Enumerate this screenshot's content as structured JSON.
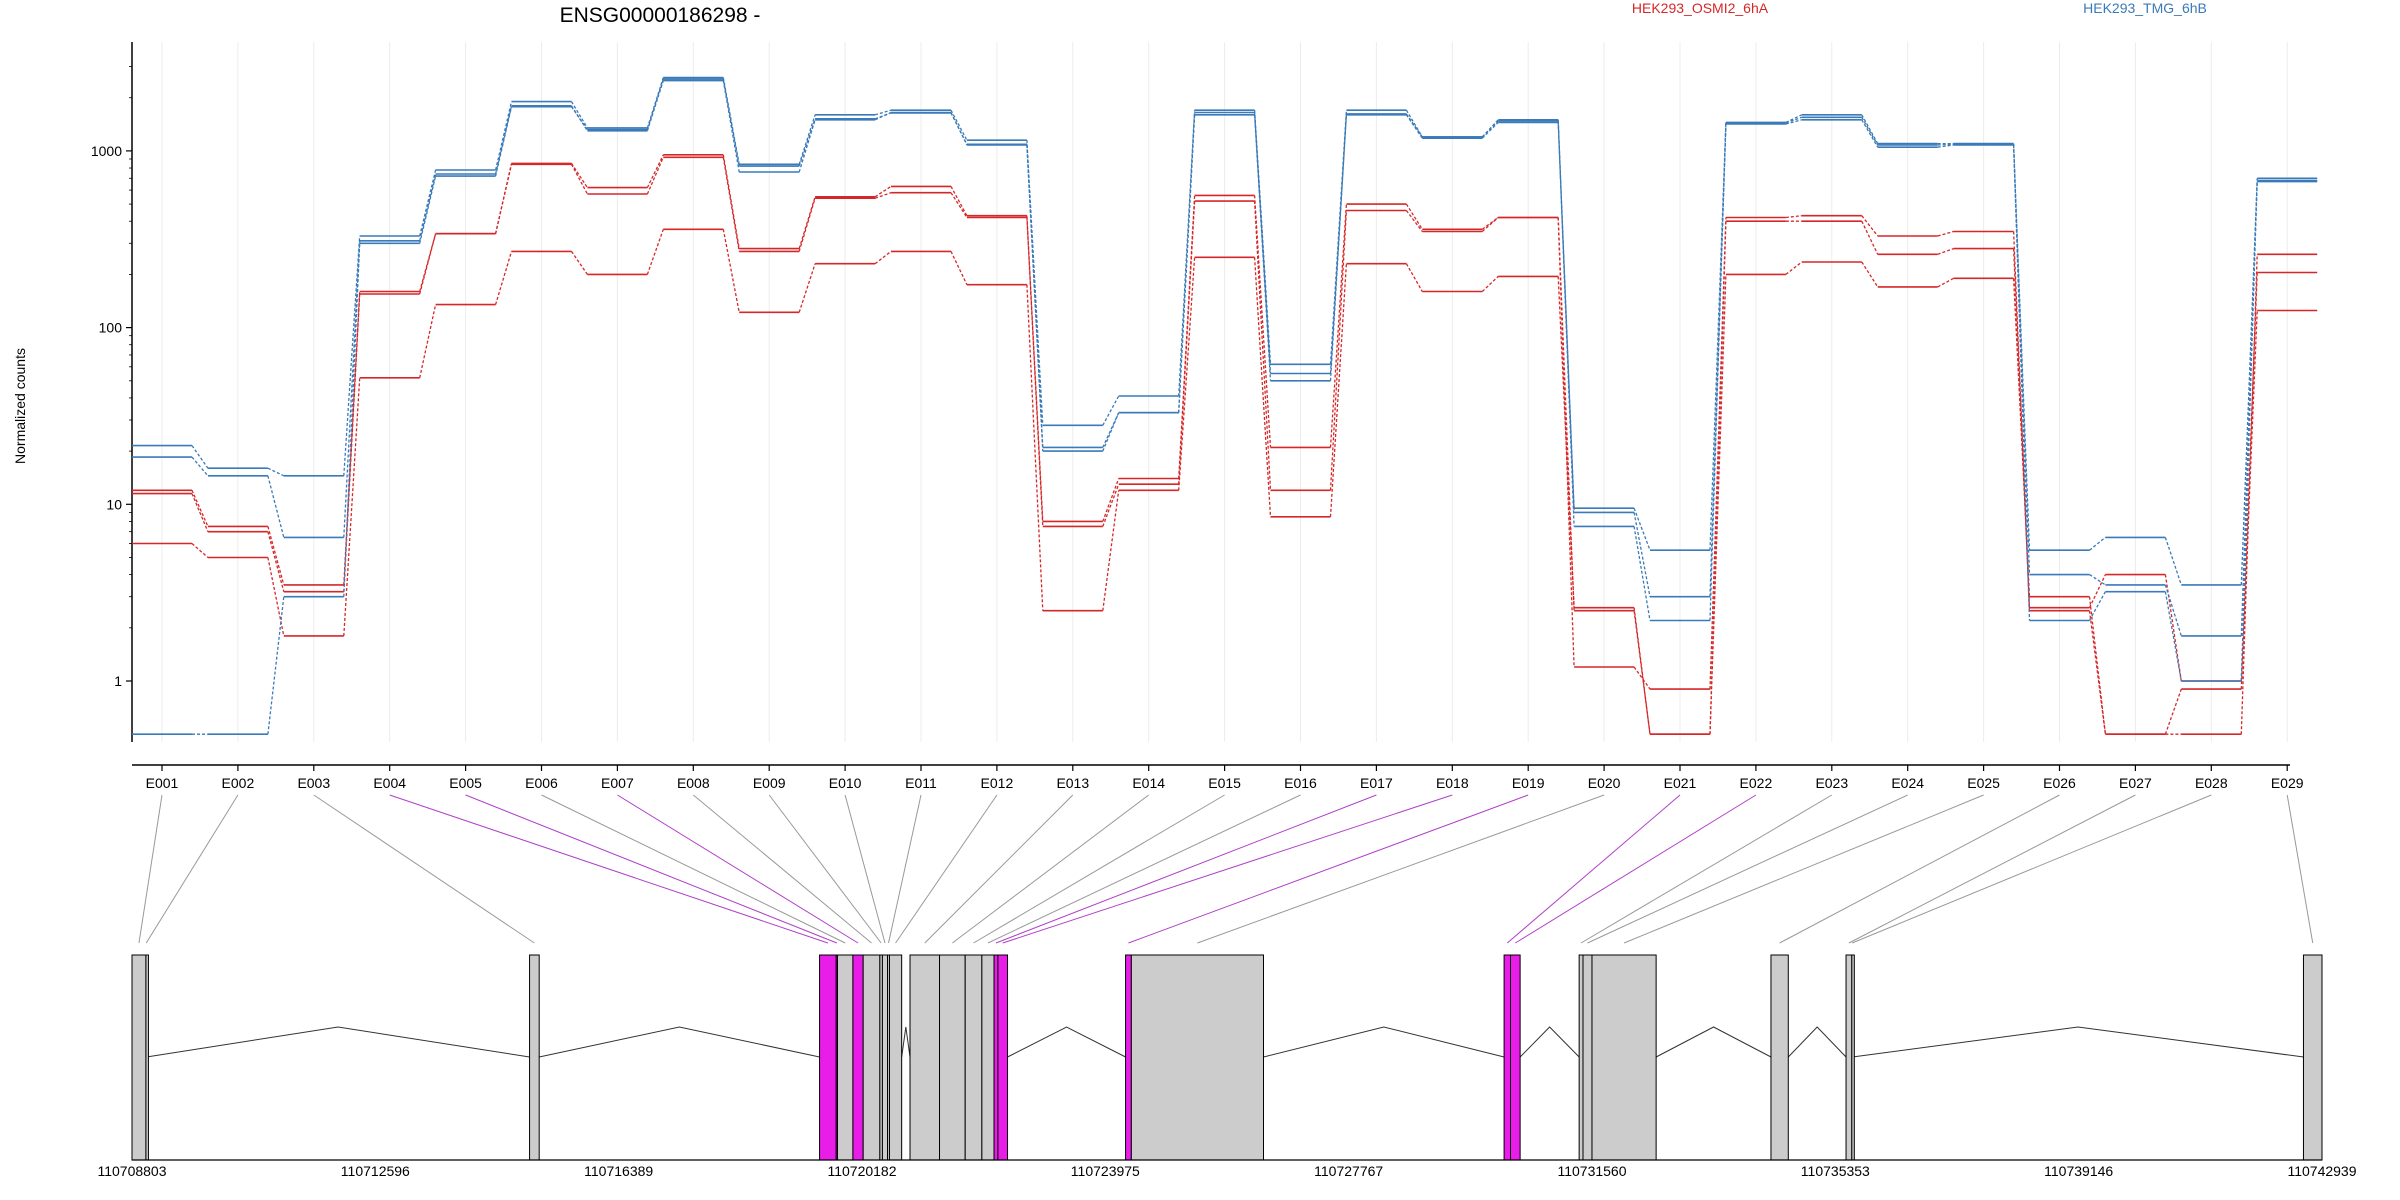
{
  "chart_data": {
    "type": "line",
    "title": "ENSG00000186298 -",
    "ylabel": "Normalized counts",
    "yscale": "log",
    "yticks": [
      1,
      10,
      100,
      1000
    ],
    "ylim": [
      0.5,
      3500
    ],
    "grid": "vertical",
    "legend_position": "top",
    "categories": [
      "E001",
      "E002",
      "E003",
      "E004",
      "E005",
      "E006",
      "E007",
      "E008",
      "E009",
      "E010",
      "E011",
      "E012",
      "E013",
      "E014",
      "E015",
      "E016",
      "E017",
      "E018",
      "E019",
      "E020",
      "E021",
      "E022",
      "E023",
      "E024",
      "E025",
      "E026",
      "E027",
      "E028",
      "E029"
    ],
    "series": [
      {
        "name": "HEK293_OSMI2_6hA",
        "color": "#d62728",
        "replicates": [
          [
            12,
            7.5,
            3.5,
            160,
            340,
            850,
            620,
            950,
            280,
            550,
            630,
            430,
            8,
            14,
            560,
            21,
            500,
            360,
            420,
            1.2,
            0.9,
            420,
            430,
            330,
            350,
            2.5,
            0.5,
            0.5,
            260
          ],
          [
            11.5,
            7,
            3.2,
            155,
            340,
            840,
            570,
            920,
            270,
            540,
            580,
            420,
            7.5,
            13,
            520,
            12,
            460,
            350,
            420,
            2.5,
            0.5,
            400,
            400,
            260,
            280,
            2.6,
            4,
            1,
            205
          ],
          [
            6,
            5,
            1.8,
            52,
            135,
            270,
            200,
            360,
            122,
            230,
            270,
            175,
            2.5,
            12,
            250,
            8.5,
            230,
            160,
            195,
            2.6,
            0.5,
            200,
            235,
            170,
            190,
            3,
            0.5,
            0.9,
            125
          ]
        ]
      },
      {
        "name": "HEK293_TMG_6hB",
        "color": "#3a7ab8",
        "replicates": [
          [
            21.5,
            16,
            14.5,
            330,
            780,
            1900,
            1350,
            2600,
            840,
            1600,
            1700,
            1150,
            28,
            41,
            1700,
            62,
            1700,
            1200,
            1500,
            9.5,
            5.5,
            1450,
            1600,
            1100,
            1100,
            5.5,
            6.5,
            3.5,
            700
          ],
          [
            18.5,
            14.5,
            6.5,
            310,
            740,
            1800,
            1300,
            2500,
            760,
            1500,
            1650,
            1080,
            21,
            33,
            1650,
            55,
            1600,
            1180,
            1450,
            9,
            3,
            1420,
            1500,
            1050,
            1080,
            4,
            3.5,
            1.8,
            670
          ],
          [
            0.5,
            0.5,
            3,
            300,
            720,
            1780,
            1320,
            2550,
            820,
            1520,
            1640,
            1090,
            20,
            33,
            1600,
            50,
            1620,
            1200,
            1480,
            7.5,
            2.2,
            1440,
            1550,
            1080,
            1090,
            2.2,
            3.2,
            1,
            680
          ]
        ]
      }
    ],
    "gene_model": {
      "coordinates": [
        "110708803",
        "110712596",
        "110716389",
        "110720182",
        "110723975",
        "110727767",
        "110731560",
        "110735353",
        "110739146",
        "110742939"
      ],
      "highlight_color": "#e81ee8",
      "exon_color": "#cccccc",
      "exons": [
        {
          "start": 110708803,
          "end": 110709020,
          "label": "E001"
        },
        {
          "start": 110709020,
          "end": 110709030,
          "label": "E002"
        },
        {
          "start": 110715000,
          "end": 110715150,
          "label": "E003"
        },
        {
          "start": 110719520,
          "end": 110719780,
          "label": "E004",
          "highlight": true
        },
        {
          "start": 110719780,
          "end": 110719800,
          "label": "E005",
          "highlight": true
        },
        {
          "start": 110719800,
          "end": 110720040,
          "label": "E006"
        },
        {
          "start": 110720040,
          "end": 110720200,
          "label": "E007",
          "highlight": true
        },
        {
          "start": 110720200,
          "end": 110720460,
          "label": "E008"
        },
        {
          "start": 110720460,
          "end": 110720500,
          "label": "E009"
        },
        {
          "start": 110720500,
          "end": 110720580,
          "label": "E010"
        },
        {
          "start": 110720580,
          "end": 110720610,
          "label": "E011"
        },
        {
          "start": 110720610,
          "end": 110720800,
          "label": "E012"
        },
        {
          "start": 110720930,
          "end": 110721390,
          "label": "E013"
        },
        {
          "start": 110721390,
          "end": 110721790,
          "label": "E014"
        },
        {
          "start": 110721790,
          "end": 110722050,
          "label": "E015"
        },
        {
          "start": 110722050,
          "end": 110722240,
          "label": "E016"
        },
        {
          "start": 110722240,
          "end": 110722300,
          "label": "E017",
          "highlight": true
        },
        {
          "start": 110722300,
          "end": 110722450,
          "label": "E018",
          "highlight": true
        },
        {
          "start": 110724290,
          "end": 110724380,
          "label": "E019",
          "highlight": true
        },
        {
          "start": 110724380,
          "end": 110726440,
          "label": "E020"
        },
        {
          "start": 110730190,
          "end": 110730290,
          "label": "E021",
          "highlight": true
        },
        {
          "start": 110730290,
          "end": 110730440,
          "label": "E022",
          "highlight": true
        },
        {
          "start": 110731360,
          "end": 110731420,
          "label": "E023"
        },
        {
          "start": 110731420,
          "end": 110731560,
          "label": "E024"
        },
        {
          "start": 110731560,
          "end": 110732560,
          "label": "E025"
        },
        {
          "start": 110734350,
          "end": 110734620,
          "label": "E026"
        },
        {
          "start": 110735520,
          "end": 110735610,
          "label": "E027"
        },
        {
          "start": 110735610,
          "end": 110735620,
          "label": "E028"
        },
        {
          "start": 110742650,
          "end": 110742939,
          "label": "E029"
        }
      ]
    }
  }
}
